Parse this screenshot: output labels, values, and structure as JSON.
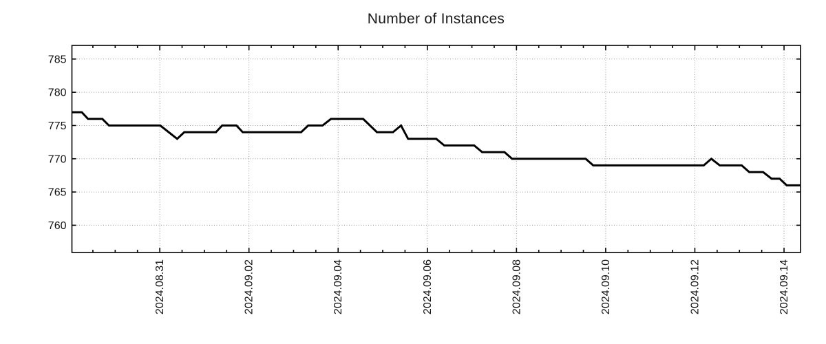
{
  "chart_data": {
    "type": "line",
    "title": "Number of Instances",
    "xlabel": "",
    "ylabel": "",
    "grid": {
      "style": "dotted",
      "color": "#9a9a9a"
    },
    "frame_color": "#000000",
    "background_color": "#ffffff",
    "x_axis": {
      "unit": "days relative to 2024-08-31 00:00",
      "lim": [
        -1.97,
        14.37
      ],
      "major_tick_offsets": [
        0,
        2,
        4,
        6,
        8,
        10,
        12,
        14
      ],
      "major_tick_labels": [
        "2024.08.31",
        "2024.09.02",
        "2024.09.04",
        "2024.09.06",
        "2024.09.08",
        "2024.09.10",
        "2024.09.12",
        "2024.09.14"
      ],
      "minor_tick_step_days": 0.5
    },
    "y_axis": {
      "lim": [
        755.9,
        787.05
      ],
      "tick_values": [
        785,
        780,
        775,
        770,
        765,
        760
      ],
      "tick_labels": [
        "785",
        "780",
        "775",
        "770",
        "765",
        "760"
      ]
    },
    "series": [
      {
        "name": "instances",
        "color": "#000000",
        "line_width": 3,
        "points": [
          [
            -1.97,
            777
          ],
          [
            -1.75,
            777
          ],
          [
            -1.61,
            776
          ],
          [
            -1.29,
            776
          ],
          [
            -1.14,
            775
          ],
          [
            0.01,
            775
          ],
          [
            0.39,
            773
          ],
          [
            0.55,
            774
          ],
          [
            1.26,
            774
          ],
          [
            1.4,
            775
          ],
          [
            1.72,
            775
          ],
          [
            1.86,
            774
          ],
          [
            3.17,
            774
          ],
          [
            3.33,
            775
          ],
          [
            3.65,
            775
          ],
          [
            3.84,
            776
          ],
          [
            4.56,
            776
          ],
          [
            4.87,
            774
          ],
          [
            5.23,
            774
          ],
          [
            5.41,
            775
          ],
          [
            5.57,
            773
          ],
          [
            6.2,
            773
          ],
          [
            6.38,
            772
          ],
          [
            7.05,
            772
          ],
          [
            7.23,
            771
          ],
          [
            7.73,
            771
          ],
          [
            7.9,
            770
          ],
          [
            9.55,
            770
          ],
          [
            9.72,
            769
          ],
          [
            12.2,
            769
          ],
          [
            12.37,
            770
          ],
          [
            12.56,
            769
          ],
          [
            13.05,
            769
          ],
          [
            13.22,
            768
          ],
          [
            13.53,
            768
          ],
          [
            13.72,
            767
          ],
          [
            13.9,
            767
          ],
          [
            14.06,
            766
          ],
          [
            14.36,
            766
          ]
        ]
      }
    ]
  }
}
